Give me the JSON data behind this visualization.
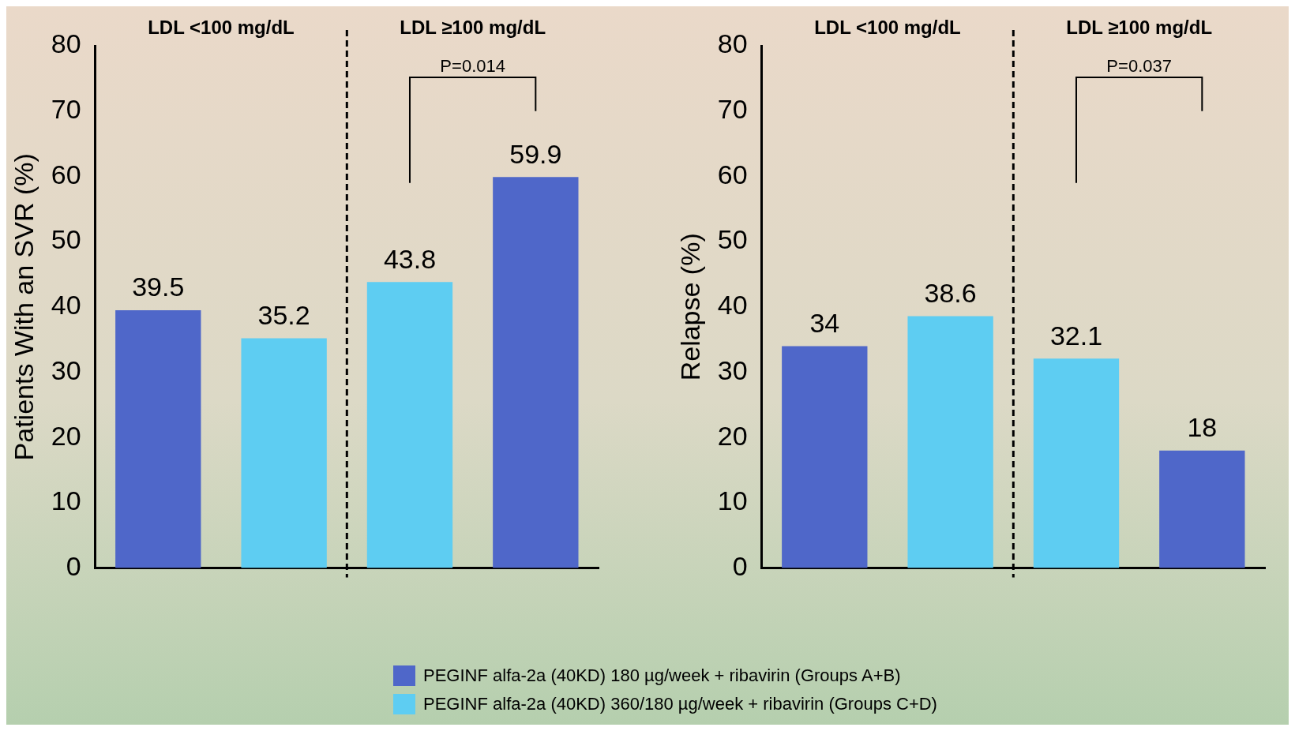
{
  "chart_data": [
    {
      "type": "bar",
      "ylabel": "Patients With an SVR (%)",
      "categories": [
        null,
        null,
        null,
        null
      ],
      "series": [
        {
          "name": "PEGINF alfa-2a (40KD) 180 µg/week + ribavirin (Groups A+B)",
          "color": "#4f67c9",
          "values": [
            39.5,
            null,
            null,
            59.9
          ]
        },
        {
          "name": "PEGINF alfa-2a (40KD) 360/180 µg/week + ribavirin (Groups C+D)",
          "color": "#5ecdf2",
          "values": [
            null,
            35.2,
            43.8,
            null
          ]
        }
      ],
      "ylim": [
        0,
        80
      ],
      "yticks": [
        0,
        10,
        20,
        30,
        40,
        50,
        60,
        70,
        80
      ],
      "grid": false,
      "data_labels": true,
      "legend": "bottom",
      "annotations": [
        "LDL <100 mg/dL",
        "LDL ≥100 mg/dL",
        "P=0.014"
      ]
    },
    {
      "type": "bar",
      "ylabel": "Relapse (%)",
      "categories": [
        null,
        null,
        null,
        null
      ],
      "series": [
        {
          "color": "#4f67c9",
          "values": [
            34,
            null,
            null,
            18
          ]
        },
        {
          "color": "#5ecdf2",
          "values": [
            null,
            38.6,
            32.1,
            null
          ]
        }
      ],
      "ylim": [
        0,
        80
      ],
      "yticks": [
        0,
        10,
        20,
        30,
        40,
        50,
        60,
        70,
        80
      ],
      "grid": false,
      "data_labels": true,
      "annotations": [
        "LDL <100 mg/dL",
        "LDL ≥100 mg/dL",
        "P=0.037"
      ]
    }
  ]
}
